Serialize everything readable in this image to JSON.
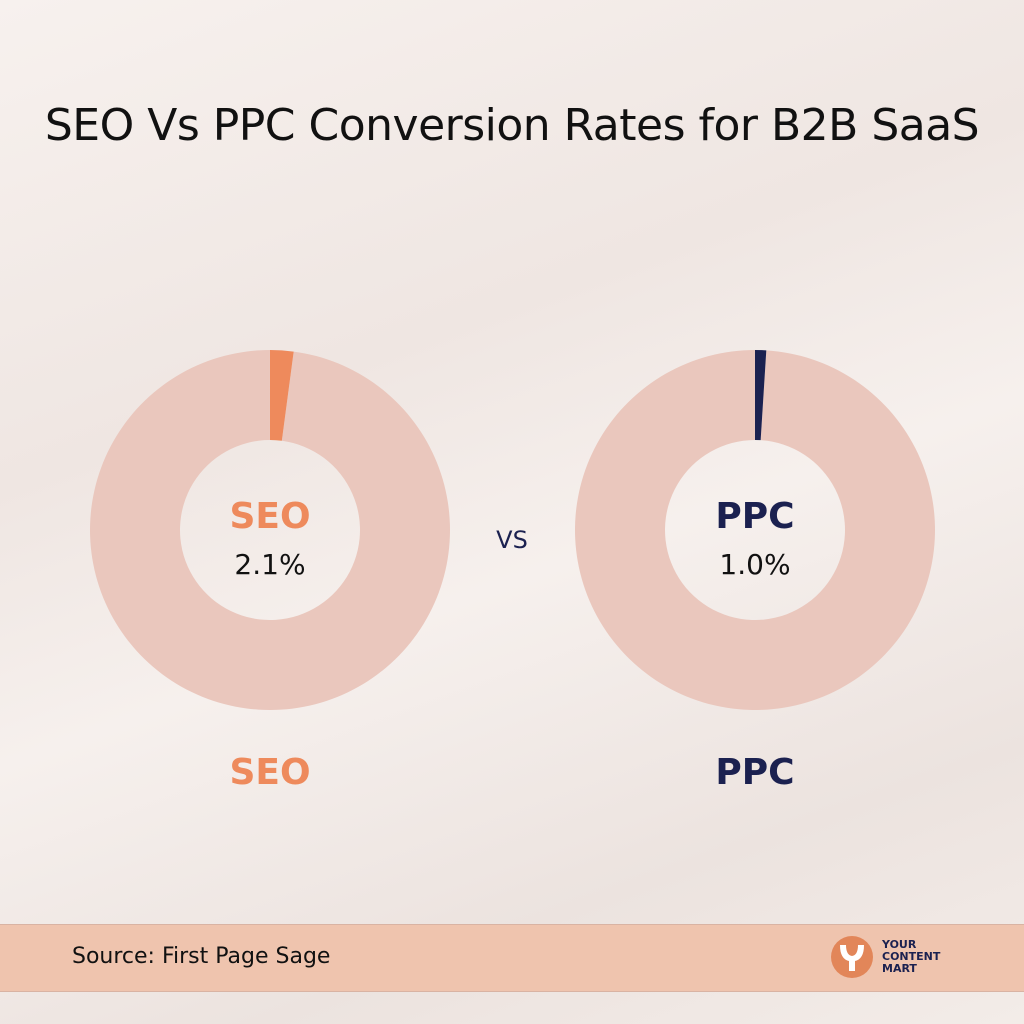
{
  "chart_data": {
    "type": "pie",
    "title": "SEO Vs PPC Conversion Rates for B2B SaaS",
    "charts": [
      {
        "name": "SEO",
        "value": 2.1,
        "value_label": "2.1%",
        "total": 100,
        "color": "#ee8a5c",
        "remainder_color": "#eac7bd",
        "label_color": "#ee8a5c"
      },
      {
        "name": "PPC",
        "value": 1.0,
        "value_label": "1.0%",
        "total": 100,
        "color": "#1b2150",
        "remainder_color": "#eac7bd",
        "label_color": "#1b2150"
      }
    ],
    "separator": "VS"
  },
  "footer": {
    "source": "Source: First Page Sage",
    "logo_text": "YOUR\nCONTENT\nMART",
    "logo_color": "#e28659"
  }
}
